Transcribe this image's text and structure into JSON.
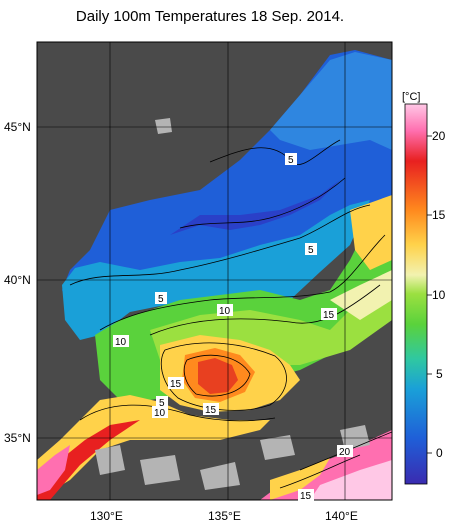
{
  "title": "Daily 100m Temperatures 18 Sep. 2014.",
  "lat_labels": [
    "45°N",
    "40°N",
    "35°N"
  ],
  "lon_labels": [
    "130°E",
    "135°E",
    "140°E"
  ],
  "colorbar": {
    "unit": "[°C]",
    "ticks": [
      "20",
      "15",
      "10",
      "5",
      "0"
    ],
    "range": [
      -2,
      22
    ],
    "colors": [
      "#3a2bb0",
      "#1f5fd8",
      "#1aa0d8",
      "#30c8a0",
      "#5ad23c",
      "#9be040",
      "#f2f2b0",
      "#ffd24a",
      "#ff8a1e",
      "#e82020",
      "#ff6fb0",
      "#ffc8e6"
    ]
  },
  "contour_labels": [
    "5",
    "5",
    "5",
    "10",
    "10",
    "15",
    "15",
    "5",
    "10",
    "15",
    "20",
    "15"
  ],
  "colors": {
    "land": "#4a4a4a",
    "no_data": "#b4b4b4",
    "background": "#ffffff"
  }
}
